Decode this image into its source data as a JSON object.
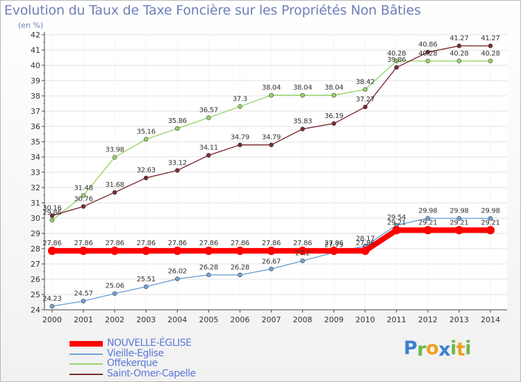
{
  "title": "Evolution du Taux de Taxe Foncière sur les Propriétés Non Bâties",
  "unit": "(en %)",
  "brand": {
    "name": "Proxiti",
    "letters": [
      "P",
      "r",
      "o",
      "x",
      "i",
      "t",
      "i"
    ],
    "colors": [
      "#3a7fd0",
      "#6cb84a",
      "#f0a020",
      "#3a7fd0",
      "#6cb84a",
      "#f0a020",
      "#6cb84a"
    ]
  },
  "chart_data": {
    "type": "line",
    "title": "Evolution du Taux de Taxe Foncière sur les Propriétés Non Bâties",
    "ylabel": "(en %)",
    "xlabel": "",
    "x": [
      "2000",
      "2001",
      "2002",
      "2003",
      "2004",
      "2005",
      "2006",
      "2007",
      "2008",
      "2009",
      "2010",
      "2011",
      "2012",
      "2013",
      "2014"
    ],
    "ylim": [
      24,
      42
    ],
    "yticks": [
      24,
      25,
      26,
      27,
      28,
      29,
      30,
      31,
      32,
      33,
      34,
      35,
      36,
      37,
      38,
      39,
      40,
      41,
      42
    ],
    "grid": true,
    "legend_position": "bottom-left",
    "series": [
      {
        "name": "NOUVELLE-ÉGLISE",
        "color": "#ff0000",
        "values": [
          27.86,
          27.86,
          27.86,
          27.86,
          27.86,
          27.86,
          27.86,
          27.86,
          27.86,
          27.86,
          27.86,
          29.21,
          29.21,
          29.21,
          29.21
        ],
        "labels": [
          "27.86",
          "27.86",
          "27.86",
          "27.86",
          "27.86",
          "27.86",
          "27.86",
          "27.86",
          "27.86",
          "27.86",
          "27.86",
          "29.21",
          "29.21",
          "29.21",
          "29.21"
        ]
      },
      {
        "name": "Vieille-Eglise",
        "color": "#6fa3d6",
        "values": [
          24.23,
          24.57,
          25.06,
          25.51,
          26.02,
          26.28,
          26.28,
          26.67,
          27.2,
          27.75,
          28.17,
          29.54,
          29.98,
          29.98,
          29.98
        ],
        "labels": [
          "24.23",
          "24.57",
          "25.06",
          "25.51",
          "26.02",
          "26.28",
          "26.28",
          "26.67",
          "27.2",
          "27.75",
          "28.17",
          "29.54",
          "29.98",
          "29.98",
          "29.98"
        ]
      },
      {
        "name": "Offekerque",
        "color": "#99d36a",
        "values": [
          29.86,
          31.48,
          33.98,
          35.16,
          35.86,
          36.57,
          37.3,
          38.04,
          38.04,
          38.04,
          38.42,
          40.28,
          40.28,
          40.28,
          40.28
        ],
        "labels": [
          "29.86",
          "31.48",
          "33.98",
          "35.16",
          "35.86",
          "36.57",
          "37.3",
          "38.04",
          "38.04",
          "38.04",
          "38.42",
          "40.28",
          "40.28",
          "40.28",
          "40.28"
        ]
      },
      {
        "name": "Saint-Omer-Capelle",
        "color": "#7a2b32",
        "values": [
          30.16,
          30.76,
          31.68,
          32.63,
          33.12,
          34.11,
          34.79,
          34.79,
          35.83,
          36.19,
          37.27,
          39.86,
          40.86,
          41.27,
          41.27
        ],
        "labels": [
          "30.16",
          "30.76",
          "31.68",
          "32.63",
          "33.12",
          "34.11",
          "34.79",
          "34.79",
          "35.83",
          "36.19",
          "37.27",
          "39.86",
          "40.86",
          "41.27",
          "41.27"
        ]
      }
    ]
  }
}
